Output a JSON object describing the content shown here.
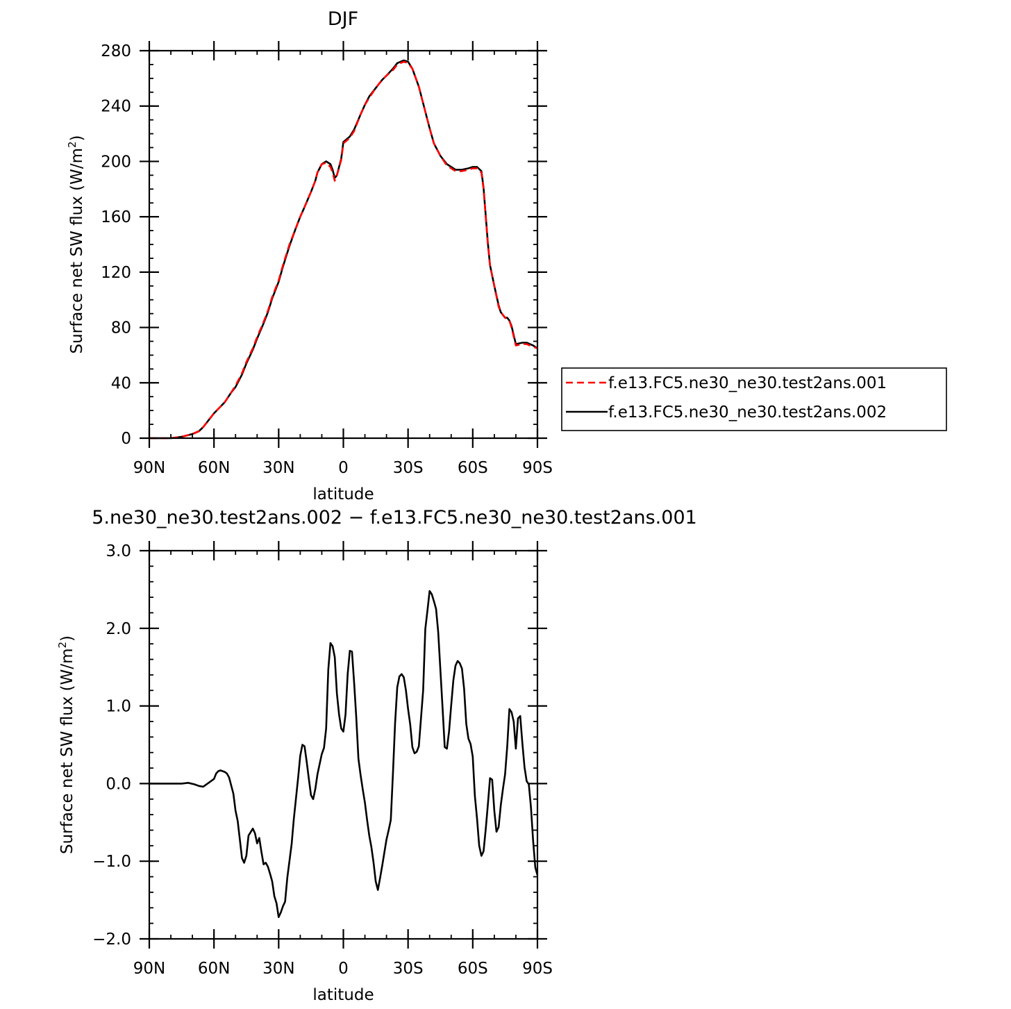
{
  "chart_data": [
    {
      "type": "line",
      "title": "DJF",
      "xlabel": "latitude",
      "ylabel": "Surface net SW flux (W/m²)",
      "ylabel_main": "Surface net SW flux (W/m",
      "ylabel_sup": "2",
      "ylabel_end": ")",
      "xlim": [
        90,
        -90
      ],
      "ylim": [
        0,
        280
      ],
      "xticks": [
        {
          "v": 90,
          "label": "90N"
        },
        {
          "v": 60,
          "label": "60N"
        },
        {
          "v": 30,
          "label": "30N"
        },
        {
          "v": 0,
          "label": "0"
        },
        {
          "v": -30,
          "label": "30S"
        },
        {
          "v": -60,
          "label": "60S"
        },
        {
          "v": -90,
          "label": "90S"
        }
      ],
      "yticks": [
        {
          "v": 0,
          "label": "0"
        },
        {
          "v": 40,
          "label": "40"
        },
        {
          "v": 80,
          "label": "80"
        },
        {
          "v": 120,
          "label": "120"
        },
        {
          "v": 160,
          "label": "160"
        },
        {
          "v": 200,
          "label": "200"
        },
        {
          "v": 240,
          "label": "240"
        },
        {
          "v": 280,
          "label": "280"
        }
      ],
      "legend": "right",
      "series": [
        {
          "name": "f.e13.FC5.ne30_ne30.test2ans.001",
          "color": "#ff0000",
          "dash": "dashed",
          "x": [
            90,
            80,
            75,
            70,
            67,
            65,
            62,
            60,
            55,
            52,
            50,
            47,
            45,
            42,
            40,
            37,
            35,
            33,
            30,
            28,
            25,
            22,
            20,
            18,
            15,
            13,
            12,
            10,
            8,
            6,
            5,
            4,
            3,
            1,
            0,
            -3,
            -5,
            -8,
            -10,
            -12,
            -15,
            -18,
            -20,
            -23,
            -25,
            -28,
            -30,
            -32,
            -35,
            -38,
            -40,
            -42,
            -45,
            -48,
            -52,
            -55,
            -58,
            -60,
            -62,
            -64,
            -65,
            -66,
            -67,
            -68,
            -70,
            -72,
            -73,
            -75,
            -76,
            -77,
            -78,
            -80,
            -83,
            -85,
            -88,
            -90
          ],
          "y": [
            0,
            0,
            1,
            3,
            5,
            8,
            14,
            18,
            26,
            33,
            38,
            47,
            55,
            65,
            73,
            84,
            92,
            102,
            114,
            125,
            140,
            152,
            160,
            167,
            178,
            186,
            192,
            198,
            199,
            196,
            192,
            186,
            190,
            201,
            213,
            217,
            222,
            234,
            241,
            246,
            253,
            259,
            262,
            266,
            270,
            272,
            271,
            267,
            254,
            236,
            224,
            213,
            204,
            197,
            193,
            193,
            194,
            195,
            195,
            192,
            180,
            160,
            140,
            125,
            110,
            95,
            91,
            87,
            86,
            85,
            80,
            67,
            68,
            68,
            66,
            65
          ]
        },
        {
          "name": "f.e13.FC5.ne30_ne30.test2ans.002",
          "color": "#000000",
          "dash": "solid",
          "x": [
            90,
            80,
            75,
            70,
            67,
            65,
            62,
            60,
            55,
            52,
            50,
            47,
            45,
            42,
            40,
            37,
            35,
            33,
            30,
            28,
            25,
            22,
            20,
            18,
            15,
            13,
            12,
            10,
            8,
            6,
            5,
            4,
            3,
            1,
            0,
            -3,
            -5,
            -8,
            -10,
            -12,
            -15,
            -18,
            -20,
            -23,
            -25,
            -28,
            -30,
            -32,
            -35,
            -38,
            -40,
            -42,
            -45,
            -48,
            -52,
            -55,
            -58,
            -60,
            -62,
            -64,
            -65,
            -66,
            -67,
            -68,
            -70,
            -72,
            -73,
            -75,
            -76,
            -77,
            -78,
            -80,
            -83,
            -85,
            -88,
            -90
          ],
          "y": [
            0,
            0,
            1,
            3,
            5,
            8,
            14,
            18,
            26,
            33,
            37,
            46,
            54,
            64,
            72,
            83,
            91,
            101,
            113,
            124,
            139,
            152,
            160,
            167,
            178,
            186,
            192,
            198,
            200,
            198,
            194,
            188,
            190,
            202,
            214,
            218,
            223,
            234,
            241,
            247,
            253,
            259,
            262,
            267,
            271,
            273,
            272,
            267,
            254,
            236,
            224,
            213,
            204,
            198,
            194,
            194,
            195,
            196,
            196,
            193,
            181,
            161,
            141,
            125,
            110,
            96,
            91,
            87,
            87,
            85,
            81,
            68,
            69,
            69,
            67,
            65
          ]
        }
      ]
    },
    {
      "type": "line",
      "title": "5.ne30_ne30.test2ans.002 − f.e13.FC5.ne30_ne30.test2ans.001",
      "xlabel": "latitude",
      "ylabel": "Surface net SW flux (W/m²)",
      "ylabel_main": "Surface net SW flux (W/m",
      "ylabel_sup": "2",
      "ylabel_end": ")",
      "xlim": [
        90,
        -90
      ],
      "ylim": [
        -2,
        3
      ],
      "xticks": [
        {
          "v": 90,
          "label": "90N"
        },
        {
          "v": 60,
          "label": "60N"
        },
        {
          "v": 30,
          "label": "30N"
        },
        {
          "v": 0,
          "label": "0"
        },
        {
          "v": -30,
          "label": "30S"
        },
        {
          "v": -60,
          "label": "60S"
        },
        {
          "v": -90,
          "label": "90S"
        }
      ],
      "yticks": [
        {
          "v": -2,
          "label": "−2.0"
        },
        {
          "v": -1,
          "label": "−1.0"
        },
        {
          "v": 0,
          "label": "0.0"
        },
        {
          "v": 1,
          "label": "1.0"
        },
        {
          "v": 2,
          "label": "2.0"
        },
        {
          "v": 3,
          "label": "3.0"
        }
      ],
      "legend": "none",
      "series": [
        {
          "color": "#000000",
          "dash": "solid",
          "x": [
            90,
            85,
            75,
            72,
            69,
            67,
            65,
            62,
            61,
            60,
            59,
            58,
            57,
            55,
            54,
            53,
            51,
            50,
            49,
            47,
            46,
            45,
            44,
            42,
            41,
            40,
            39,
            38,
            37,
            36,
            35,
            34,
            33,
            32,
            31,
            30,
            29,
            28,
            27,
            26,
            24,
            23,
            21,
            20,
            19,
            18,
            17,
            16,
            15,
            14,
            13,
            12,
            11,
            10,
            9,
            8,
            7,
            6,
            5,
            4,
            3,
            2,
            1,
            0,
            -1,
            -2,
            -3,
            -4,
            -5,
            -6,
            -7,
            -8,
            -9,
            -10,
            -11,
            -12,
            -13,
            -14,
            -15,
            -16,
            -17,
            -18,
            -20,
            -21,
            -22,
            -23,
            -24,
            -25,
            -26,
            -27,
            -28,
            -29,
            -30,
            -31,
            -32,
            -33,
            -34,
            -35,
            -37,
            -38,
            -39,
            -40,
            -41,
            -42,
            -43,
            -44,
            -46,
            -47,
            -48,
            -49,
            -50,
            -51,
            -52,
            -53,
            -54,
            -55,
            -56,
            -57,
            -58,
            -59,
            -60,
            -61,
            -62,
            -63,
            -64,
            -65,
            -66,
            -67,
            -68,
            -69,
            -70,
            -71,
            -72,
            -73,
            -74,
            -75,
            -76,
            -77,
            -78,
            -79,
            -80,
            -81,
            -82,
            -83,
            -84,
            -85,
            -86,
            -87,
            -88,
            -89,
            -90
          ],
          "y": [
            0,
            0,
            0,
            0.01,
            -0.01,
            -0.03,
            -0.04,
            0.02,
            0.04,
            0.06,
            0.13,
            0.16,
            0.17,
            0.15,
            0.13,
            0.08,
            -0.13,
            -0.35,
            -0.48,
            -0.96,
            -1.02,
            -0.93,
            -0.67,
            -0.58,
            -0.64,
            -0.77,
            -0.7,
            -0.88,
            -1.04,
            -1.02,
            -1.07,
            -1.16,
            -1.26,
            -1.45,
            -1.54,
            -1.72,
            -1.66,
            -1.58,
            -1.52,
            -1.21,
            -0.78,
            -0.46,
            0.07,
            0.36,
            0.5,
            0.48,
            0.28,
            0.06,
            -0.15,
            -0.2,
            -0.07,
            0.12,
            0.25,
            0.38,
            0.46,
            0.71,
            1.47,
            1.81,
            1.77,
            1.63,
            1.16,
            0.89,
            0.71,
            0.67,
            0.89,
            1.41,
            1.71,
            1.7,
            1.3,
            0.85,
            0.32,
            0.11,
            -0.08,
            -0.25,
            -0.47,
            -0.67,
            -0.82,
            -1.02,
            -1.26,
            -1.37,
            -1.22,
            -1.06,
            -0.72,
            -0.6,
            -0.47,
            0.13,
            0.78,
            1.24,
            1.38,
            1.41,
            1.37,
            1.2,
            0.96,
            0.76,
            0.47,
            0.39,
            0.41,
            0.48,
            1.2,
            1.99,
            2.23,
            2.48,
            2.44,
            2.35,
            2.25,
            1.95,
            0.97,
            0.47,
            0.45,
            0.67,
            1.01,
            1.33,
            1.52,
            1.58,
            1.55,
            1.48,
            1.22,
            0.77,
            0.58,
            0.51,
            0.35,
            -0.16,
            -0.45,
            -0.8,
            -0.93,
            -0.87,
            -0.59,
            -0.27,
            0.07,
            0.05,
            -0.35,
            -0.62,
            -0.56,
            -0.28,
            -0.07,
            0.12,
            0.48,
            0.96,
            0.92,
            0.8,
            0.45,
            0.84,
            0.87,
            0.52,
            0.21,
            0.03,
            -0.01,
            -0.31,
            -0.74,
            -1.08,
            -1.18
          ]
        }
      ]
    }
  ]
}
